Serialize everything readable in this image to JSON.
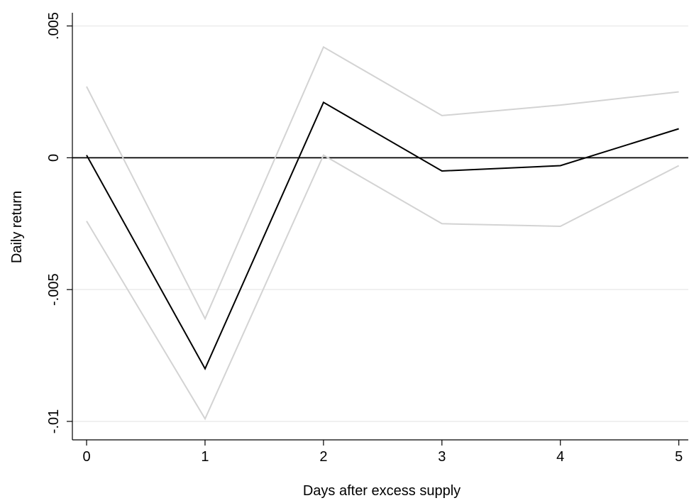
{
  "chart_data": {
    "type": "line",
    "xlabel": "Days after excess supply",
    "ylabel": "Daily return",
    "x": [
      0,
      1,
      2,
      3,
      4,
      5
    ],
    "xlim": [
      -0.12,
      5.08
    ],
    "ylim": [
      -0.0107,
      0.0055
    ],
    "xticks": [
      0,
      1,
      2,
      3,
      4,
      5
    ],
    "xtick_labels": [
      "0",
      "1",
      "2",
      "3",
      "4",
      "5"
    ],
    "yticks": [
      -0.01,
      -0.005,
      0,
      0.005
    ],
    "ytick_labels": [
      "-.01",
      "-.005",
      "0",
      ".005"
    ],
    "grid": "horizontal",
    "reference_line_y": 0,
    "series": [
      {
        "role": "upper-bound",
        "color": "#d3d3d3",
        "values": [
          0.0027,
          -0.0061,
          0.0042,
          0.0016,
          0.002,
          0.0025
        ]
      },
      {
        "role": "estimate",
        "color": "#000000",
        "values": [
          0.0001,
          -0.008,
          0.0021,
          -0.0005,
          -0.0003,
          0.0011
        ]
      },
      {
        "role": "lower-bound",
        "color": "#d3d3d3",
        "values": [
          -0.0024,
          -0.0099,
          0.0001,
          -0.0025,
          -0.0026,
          -0.0003
        ]
      }
    ],
    "colors": {
      "grid": "#ececec",
      "axis": "#000000",
      "reference": "#000000"
    }
  }
}
